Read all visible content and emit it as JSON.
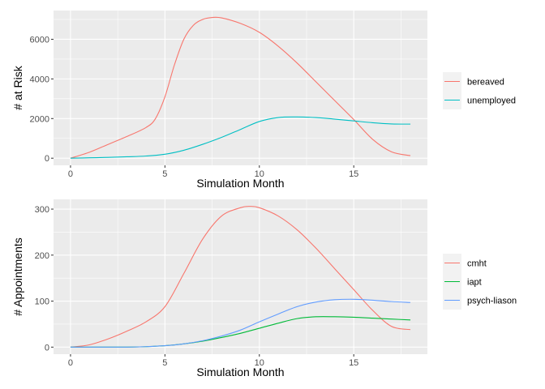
{
  "chart_data": [
    {
      "type": "line",
      "xlabel": "Simulation Month",
      "ylabel": "# at Risk",
      "xlim": [
        -0.9,
        18.9
      ],
      "ylim": [
        -360,
        7450
      ],
      "x_ticks": [
        0,
        5,
        10,
        15
      ],
      "x_tick_labels": [
        "0",
        "5",
        "10",
        "15"
      ],
      "y_ticks": [
        0,
        2000,
        4000,
        6000
      ],
      "y_tick_labels": [
        "0",
        "2000",
        "4000",
        "6000"
      ],
      "grid": true,
      "legend_position": "right",
      "series": [
        {
          "name": "bereaved",
          "color": "#F8766D",
          "x": [
            0,
            1,
            2,
            3,
            4,
            4.5,
            5,
            5.5,
            6,
            6.5,
            7,
            7.5,
            8,
            9,
            10,
            11,
            12,
            13,
            14,
            15,
            16,
            17,
            18
          ],
          "y": [
            0,
            300,
            700,
            1100,
            1550,
            2000,
            3100,
            4700,
            6000,
            6700,
            7000,
            7100,
            7080,
            6800,
            6350,
            5650,
            4800,
            3850,
            2900,
            1950,
            950,
            320,
            130
          ]
        },
        {
          "name": "unemployed",
          "color": "#00BFC4",
          "x": [
            0,
            1,
            2,
            3,
            4,
            5,
            6,
            7,
            8,
            9,
            10,
            11,
            12,
            13,
            14,
            15,
            16,
            17,
            18
          ],
          "y": [
            0,
            20,
            40,
            70,
            110,
            200,
            400,
            700,
            1050,
            1450,
            1850,
            2050,
            2080,
            2050,
            1970,
            1880,
            1790,
            1730,
            1720
          ]
        }
      ]
    },
    {
      "type": "line",
      "xlabel": "Simulation Month",
      "ylabel": "# Appointments",
      "xlim": [
        -0.9,
        18.9
      ],
      "ylim": [
        -15.3,
        321.2
      ],
      "x_ticks": [
        0,
        5,
        10,
        15
      ],
      "x_tick_labels": [
        "0",
        "5",
        "10",
        "15"
      ],
      "y_ticks": [
        0,
        100,
        200,
        300
      ],
      "y_tick_labels": [
        "0",
        "100",
        "200",
        "300"
      ],
      "grid": true,
      "legend_position": "right",
      "series": [
        {
          "name": "cmht",
          "color": "#F8766D",
          "x": [
            0,
            1,
            2,
            3,
            4,
            5,
            6,
            7,
            8,
            9,
            9.5,
            10,
            11,
            12,
            13,
            14,
            15,
            16,
            17,
            18
          ],
          "y": [
            0,
            5,
            18,
            35,
            55,
            88,
            160,
            235,
            285,
            303,
            306,
            303,
            285,
            255,
            215,
            170,
            125,
            80,
            45,
            38
          ]
        },
        {
          "name": "iapt",
          "color": "#00BA38",
          "x": [
            0,
            1,
            2,
            3,
            4,
            5,
            6,
            7,
            8,
            9,
            10,
            11,
            12,
            13,
            14,
            15,
            16,
            17,
            18
          ],
          "y": [
            0,
            0,
            0,
            0,
            1,
            3,
            7,
            13,
            21,
            30,
            41,
            52,
            62,
            66,
            66,
            65,
            63,
            61,
            59
          ]
        },
        {
          "name": "psych-liason",
          "color": "#619CFF",
          "x": [
            0,
            1,
            2,
            3,
            4,
            5,
            6,
            7,
            8,
            9,
            10,
            11,
            12,
            13,
            14,
            15,
            16,
            17,
            18
          ],
          "y": [
            0,
            0,
            0,
            0,
            1,
            3,
            7,
            14,
            24,
            37,
            55,
            72,
            88,
            98,
            103,
            104,
            102,
            99,
            97
          ]
        }
      ]
    }
  ]
}
